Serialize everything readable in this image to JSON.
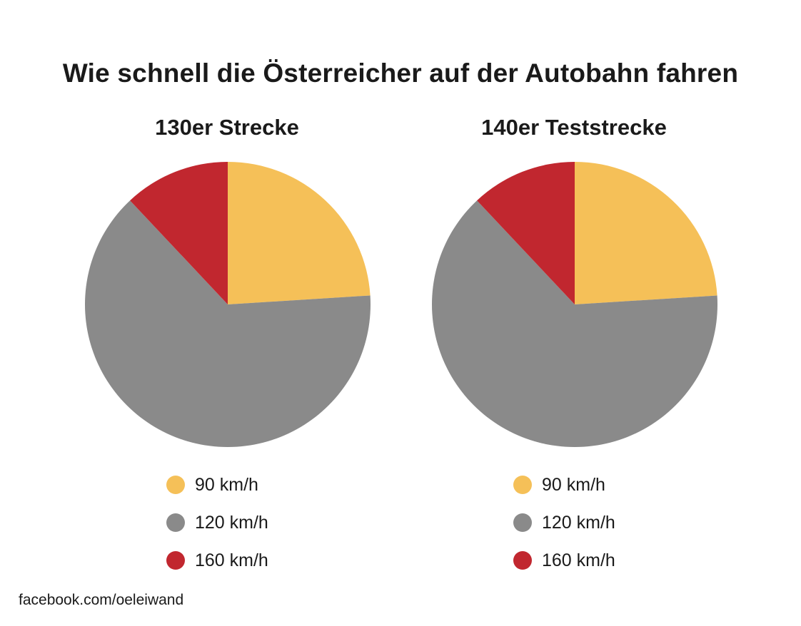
{
  "title": "Wie schnell die Österreicher auf der Autobahn fahren",
  "source": "facebook.com/oeleiwand",
  "colors": {
    "90": "#F5C058",
    "120": "#8A8A8A",
    "160": "#C1272F"
  },
  "chart_data": [
    {
      "type": "pie",
      "title": "130er Strecke",
      "categories": [
        "90 km/h",
        "120 km/h",
        "160 km/h"
      ],
      "values": [
        24,
        64,
        12
      ],
      "colors": [
        "#F5C058",
        "#8A8A8A",
        "#C1272F"
      ],
      "legend_position": "bottom"
    },
    {
      "type": "pie",
      "title": "140er Teststrecke",
      "categories": [
        "90 km/h",
        "120 km/h",
        "160 km/h"
      ],
      "values": [
        24,
        64,
        12
      ],
      "colors": [
        "#F5C058",
        "#8A8A8A",
        "#C1272F"
      ],
      "legend_position": "bottom"
    }
  ]
}
